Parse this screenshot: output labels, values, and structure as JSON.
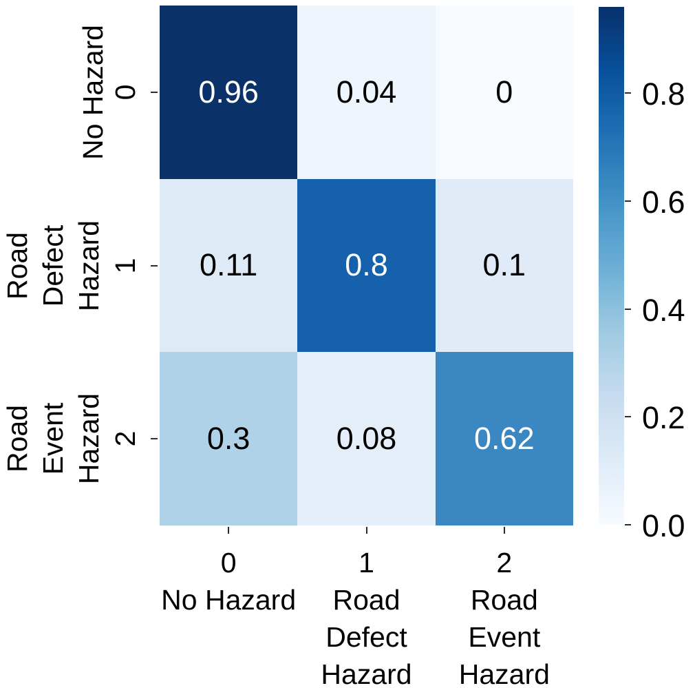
{
  "figure": {
    "background": "#ffffff",
    "tick_color": "#2b2b2b"
  },
  "chart_data": {
    "type": "heatmap",
    "title": "",
    "xlabel": "",
    "ylabel": "",
    "colormap": "Blues",
    "vmin": 0,
    "vmax": 0.96,
    "grid": false,
    "legend_position": "colorbar-right",
    "values": [
      [
        0.96,
        0.04,
        0
      ],
      [
        0.11,
        0.8,
        0.1
      ],
      [
        0.3,
        0.08,
        0.62
      ]
    ],
    "cell_labels": [
      [
        "0.96",
        "0.04",
        "0"
      ],
      [
        "0.11",
        "0.8",
        "0.1"
      ],
      [
        "0.3",
        "0.08",
        "0.62"
      ]
    ],
    "cell_colors": [
      [
        "#0a3168",
        "#eff5fc",
        "#f7fbff"
      ],
      [
        "#dfeaf7",
        "#1561ab",
        "#e1ebf8"
      ],
      [
        "#b0d2e8",
        "#e4eef9",
        "#3a87c2"
      ]
    ],
    "cell_text_colors": [
      [
        "#ffffff",
        "#000000",
        "#000000"
      ],
      [
        "#000000",
        "#ffffff",
        "#000000"
      ],
      [
        "#000000",
        "#000000",
        "#ffffff"
      ]
    ],
    "y_axis": {
      "tick_labels": [
        "0",
        "1",
        "2"
      ],
      "category_labels": [
        [
          "No Hazard"
        ],
        [
          "Road",
          "Defect",
          "Hazard"
        ],
        [
          "Road",
          "Event",
          "Hazard"
        ]
      ]
    },
    "x_axis": {
      "tick_labels": [
        "0",
        "1",
        "2"
      ],
      "category_labels": [
        [
          "No Hazard"
        ],
        [
          "Road",
          "Defect",
          "Hazard"
        ],
        [
          "Road",
          "Event",
          "Hazard"
        ]
      ]
    },
    "colorbar": {
      "tick_labels": [
        "0.8",
        "0.6",
        "0.4",
        "0.2",
        "0.0"
      ],
      "tick_values": [
        0.8,
        0.6,
        0.4,
        0.2,
        0.0
      ],
      "gradient": [
        {
          "pos": 0,
          "color": "#f7fbff"
        },
        {
          "pos": 0.125,
          "color": "#deebf7"
        },
        {
          "pos": 0.25,
          "color": "#c6dbef"
        },
        {
          "pos": 0.375,
          "color": "#9ecae1"
        },
        {
          "pos": 0.5,
          "color": "#6baed6"
        },
        {
          "pos": 0.625,
          "color": "#4292c6"
        },
        {
          "pos": 0.75,
          "color": "#2171b5"
        },
        {
          "pos": 0.875,
          "color": "#08519c"
        },
        {
          "pos": 1,
          "color": "#08306b"
        }
      ]
    }
  }
}
